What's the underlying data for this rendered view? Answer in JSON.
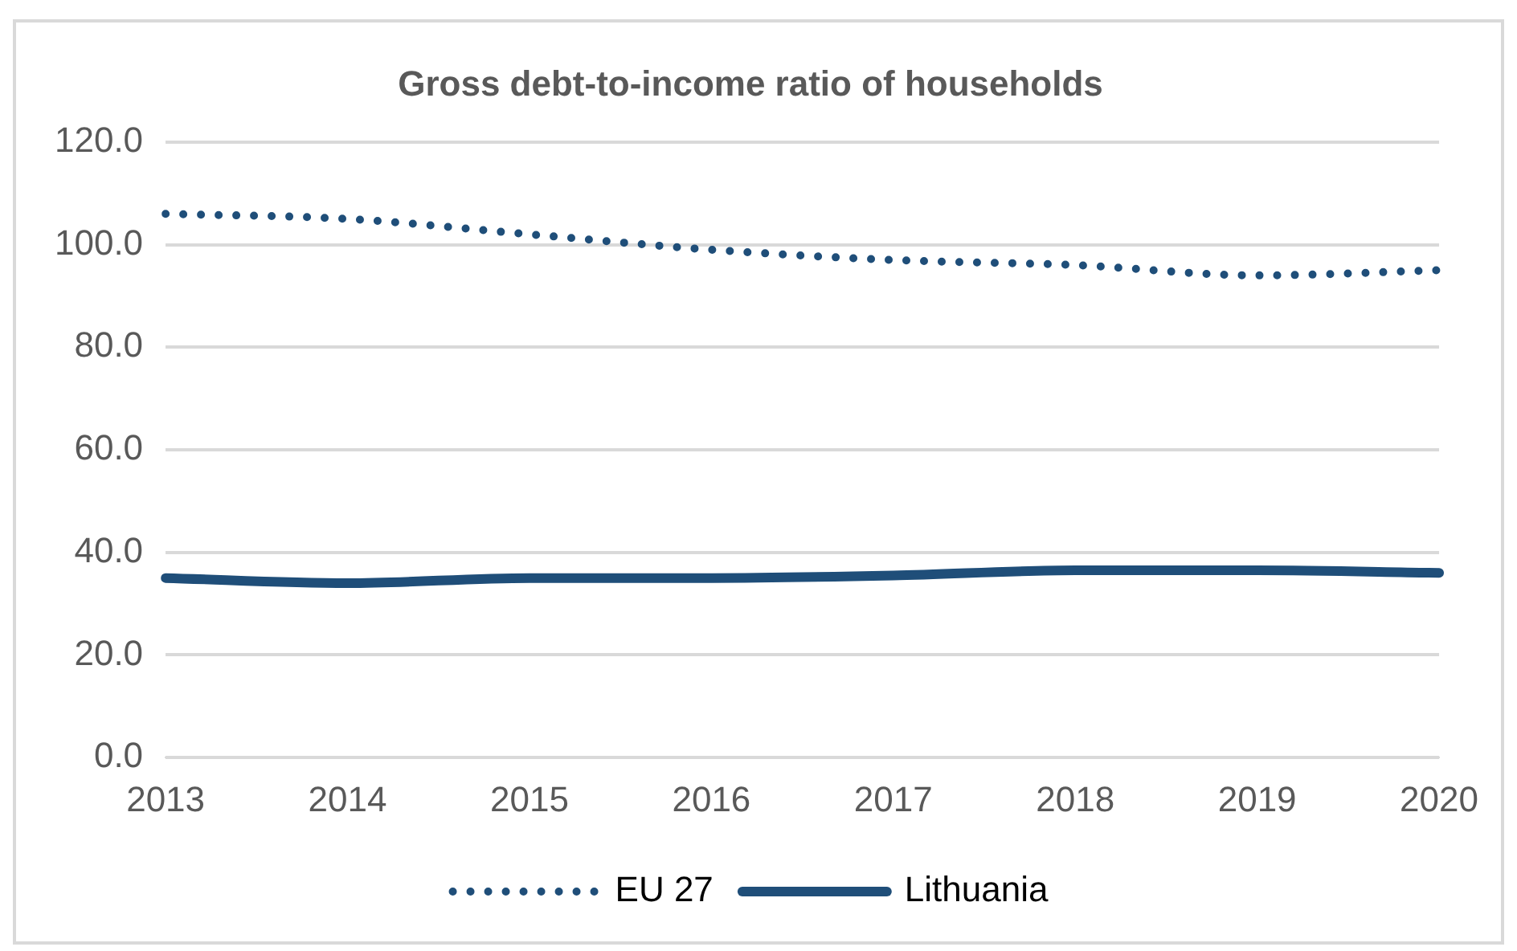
{
  "chart_data": {
    "type": "line",
    "title": "Gross debt-to-income ratio of households",
    "categories": [
      "2013",
      "2014",
      "2015",
      "2016",
      "2017",
      "2018",
      "2019",
      "2020"
    ],
    "series": [
      {
        "name": "EU 27",
        "color": "#1f4e79",
        "line_style": "dotted",
        "values": [
          106,
          105,
          102,
          99,
          97,
          96,
          94,
          95
        ]
      },
      {
        "name": "Lithuania",
        "color": "#1f4e79",
        "line_style": "solid",
        "values": [
          35,
          34,
          35,
          35,
          35.5,
          36.5,
          36.5,
          36
        ]
      }
    ],
    "ylim": [
      0,
      120
    ],
    "yticks": [
      {
        "value": 0,
        "label": "0.0"
      },
      {
        "value": 20,
        "label": "20.0"
      },
      {
        "value": 40,
        "label": "40.0"
      },
      {
        "value": 60,
        "label": "60.0"
      },
      {
        "value": 80,
        "label": "80.0"
      },
      {
        "value": 100,
        "label": "100.0"
      },
      {
        "value": 120,
        "label": "120.0"
      }
    ],
    "grid": "y",
    "legend": "bottom",
    "marker": "none"
  }
}
